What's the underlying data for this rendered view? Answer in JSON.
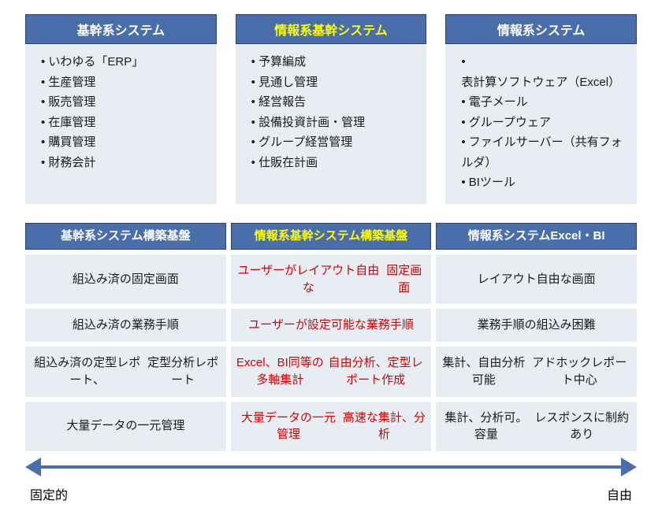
{
  "colors": {
    "header_bg": "#4a6ea9",
    "header_border": "#2c4270",
    "header_text": "#ffffff",
    "header_highlight_text": "#ffff00",
    "cell_bg": "#e8edf3",
    "cell_text": "#1a1a1a",
    "cell_emphasis_text": "#d40000",
    "arrow_color": "#4a6ea9",
    "background": "#ffffff"
  },
  "top_columns": [
    {
      "title": "基幹系システム",
      "highlight": false,
      "items": [
        "いわゆる「ERP」",
        "生産管理",
        "販売管理",
        "在庫管理",
        "購買管理",
        "財務会計"
      ]
    },
    {
      "title": "情報系基幹システム",
      "highlight": true,
      "items": [
        "予算編成",
        "見通し管理",
        "経営報告",
        "設備投資計画・管理",
        "グループ経営管理",
        "仕販在計画"
      ]
    },
    {
      "title": "情報系システム",
      "highlight": false,
      "items": [
        "表計算ソフトウェア（Excel）",
        "電子メール",
        "グループウェア",
        "ファイルサーバー（共有フォルダ）",
        "BIツール"
      ]
    }
  ],
  "grid": {
    "headers": [
      {
        "lines": [
          "基幹系システム",
          "構築基盤"
        ],
        "highlight": false
      },
      {
        "lines": [
          "情報系基幹システム",
          "構築基盤"
        ],
        "highlight": true
      },
      {
        "lines": [
          "情報系システム",
          "Excel・BI"
        ],
        "highlight": false
      }
    ],
    "rows": [
      [
        {
          "text": "組込み済の固定画面",
          "emphasis": false
        },
        {
          "text": "ユーザーがレイアウト自由な\n固定画面",
          "emphasis": true
        },
        {
          "text": "レイアウト自由な画面",
          "emphasis": false
        }
      ],
      [
        {
          "text": "組込み済の業務手順",
          "emphasis": false
        },
        {
          "text": "ユーザーが設定可能な業務手順",
          "emphasis": true
        },
        {
          "text": "業務手順の組込み困難",
          "emphasis": false
        }
      ],
      [
        {
          "text": "組込み済の定型レポート、\n定型分析レポート",
          "emphasis": false
        },
        {
          "text": "Excel、BI同等の多軸集計\n自由分析、定型レポート作成",
          "emphasis": true
        },
        {
          "text": "集計、自由分析可能\nアドホックレポート中心",
          "emphasis": false
        }
      ],
      [
        {
          "text": "大量データの一元管理",
          "emphasis": false
        },
        {
          "text": "大量データの一元管理\n高速な集計、分析",
          "emphasis": true
        },
        {
          "text": "集計、分析可。容量\nレスポンスに制約あり",
          "emphasis": false
        }
      ]
    ]
  },
  "axis": {
    "left": "固定的",
    "right": "自由"
  }
}
